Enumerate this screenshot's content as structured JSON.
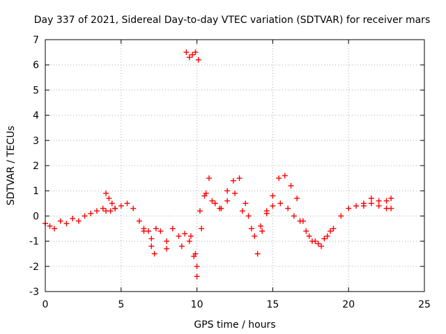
{
  "chart_data": {
    "type": "scatter",
    "title": "Day 337 of 2021, Sidereal Day-to-day VTEC variation (SDTVAR) for receiver mars",
    "xlabel": "GPS time / hours",
    "ylabel": "SDTVAR / TECUs",
    "xlim": [
      0,
      25
    ],
    "ylim": [
      -3,
      7
    ],
    "xticks": [
      "0",
      "5",
      "10",
      "15",
      "20",
      "25"
    ],
    "yticks": [
      "-3",
      "-2",
      "-1",
      "0",
      "1",
      "2",
      "3",
      "4",
      "5",
      "6",
      "7"
    ],
    "grid": true,
    "marker": "+",
    "series": [
      {
        "name": "SDTVAR",
        "color": "#ff0000",
        "x": [
          0.0,
          0.3,
          0.6,
          1.0,
          1.4,
          1.8,
          2.2,
          2.6,
          3.0,
          3.4,
          3.8,
          4.0,
          4.3,
          4.6,
          5.0,
          5.4,
          5.8,
          6.2,
          6.5,
          6.8,
          7.0,
          7.3,
          7.6,
          8.0,
          8.4,
          8.8,
          9.2,
          9.5,
          9.8,
          10.0,
          10.2,
          10.5,
          10.8,
          11.2,
          11.6,
          12.0,
          12.4,
          12.8,
          13.2,
          13.6,
          14.0,
          14.3,
          14.6,
          15.0,
          15.4,
          15.8,
          16.2,
          16.6,
          17.0,
          17.4,
          17.8,
          18.2,
          18.6,
          19.0,
          19.5,
          20.0,
          20.5,
          21.0,
          21.5,
          22.0,
          22.5,
          22.8,
          4.0,
          4.2,
          4.4,
          4.6,
          6.5,
          7.0,
          7.2,
          8.0,
          9.0,
          9.6,
          9.9,
          10.0,
          10.3,
          10.6,
          11.0,
          11.5,
          12.0,
          12.5,
          13.0,
          13.4,
          13.8,
          14.2,
          14.6,
          15.0,
          15.5,
          16.0,
          16.4,
          16.8,
          17.2,
          17.6,
          18.0,
          18.4,
          18.8,
          21.0,
          21.5,
          22.0,
          22.5,
          22.8,
          9.3,
          9.5,
          9.7,
          9.9,
          10.1
        ],
        "y": [
          -0.3,
          -0.4,
          -0.5,
          -0.2,
          -0.3,
          -0.1,
          -0.2,
          0.0,
          0.1,
          0.2,
          0.3,
          0.2,
          0.2,
          0.3,
          0.4,
          0.5,
          0.3,
          -0.2,
          -0.5,
          -0.6,
          -0.9,
          -0.5,
          -0.6,
          -1.0,
          -0.5,
          -0.8,
          -0.7,
          -1.0,
          -1.6,
          -2.0,
          0.2,
          0.8,
          1.5,
          0.5,
          0.3,
          1.0,
          1.4,
          1.5,
          0.5,
          -0.5,
          -1.5,
          -0.6,
          0.2,
          0.8,
          1.5,
          1.6,
          1.2,
          0.7,
          -0.2,
          -0.8,
          -1.0,
          -1.2,
          -0.8,
          -0.5,
          0.0,
          0.3,
          0.4,
          0.5,
          0.7,
          0.6,
          0.6,
          0.7,
          0.9,
          0.7,
          0.5,
          0.3,
          -0.6,
          -1.2,
          -1.5,
          -1.3,
          -1.2,
          -0.8,
          -1.5,
          -2.4,
          -0.5,
          0.9,
          0.6,
          0.3,
          0.6,
          0.9,
          0.2,
          0.0,
          -0.8,
          -0.4,
          0.1,
          0.4,
          0.5,
          0.3,
          0.0,
          -0.2,
          -0.6,
          -1.0,
          -1.1,
          -0.9,
          -0.6,
          0.4,
          0.5,
          0.4,
          0.3,
          0.3,
          6.5,
          6.3,
          6.4,
          6.5,
          6.2
        ]
      }
    ]
  }
}
